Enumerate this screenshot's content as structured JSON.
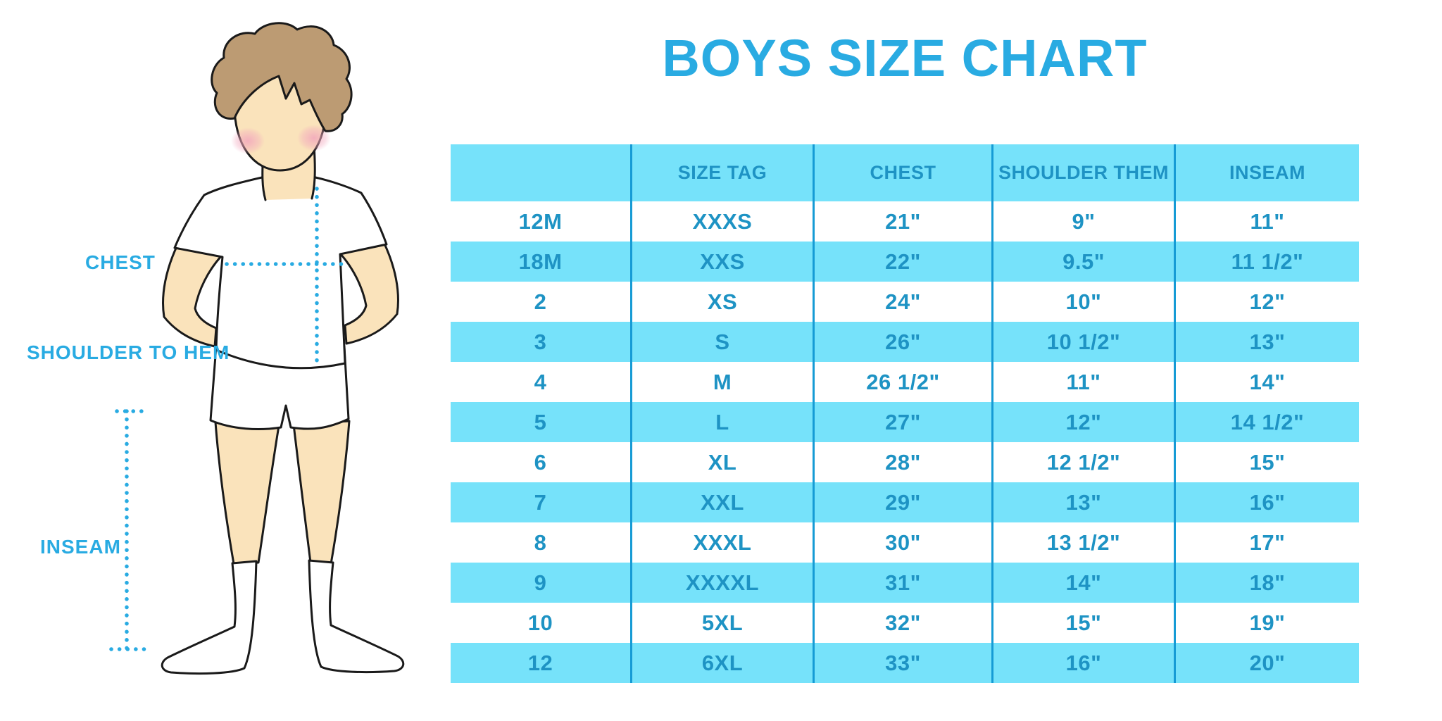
{
  "figure": {
    "labels": {
      "chest": "CHEST",
      "shoulder_to_hem": "SHOULDER TO HEM",
      "inseam": "INSEAM"
    }
  },
  "chart_data": {
    "type": "table",
    "title": "BOYS SIZE CHART",
    "columns": [
      "",
      "SIZE TAG",
      "CHEST",
      "SHOULDER THEM",
      "INSEAM"
    ],
    "rows": [
      [
        "12M",
        "XXXS",
        "21\"",
        "9\"",
        "11\""
      ],
      [
        "18M",
        "XXS",
        "22\"",
        "9.5\"",
        "11 1/2\""
      ],
      [
        "2",
        "XS",
        "24\"",
        "10\"",
        "12\""
      ],
      [
        "3",
        "S",
        "26\"",
        "10 1/2\"",
        "13\""
      ],
      [
        "4",
        "M",
        "26 1/2\"",
        "11\"",
        "14\""
      ],
      [
        "5",
        "L",
        "27\"",
        "12\"",
        "14 1/2\""
      ],
      [
        "6",
        "XL",
        "28\"",
        "12 1/2\"",
        "15\""
      ],
      [
        "7",
        "XXL",
        "29\"",
        "13\"",
        "16\""
      ],
      [
        "8",
        "XXXL",
        "30\"",
        "13 1/2\"",
        "17\""
      ],
      [
        "9",
        "XXXXL",
        "31\"",
        "14\"",
        "18\""
      ],
      [
        "10",
        "5XL",
        "32\"",
        "15\"",
        "19\""
      ],
      [
        "12",
        "6XL",
        "33\"",
        "16\"",
        "20\""
      ]
    ],
    "layout": {
      "banding": "alternating rows, header and odd rows cyan",
      "grid": "vertical separators only"
    }
  },
  "colors": {
    "accent": "#29ABE2",
    "band": "#76E2FA",
    "cell_text": "#1E93C4",
    "separator": "#169BD5",
    "outline": "#1A1A1A",
    "skin": "#FAE3BB",
    "hair": "#BC9B73",
    "blush": "#F2A6BC"
  }
}
